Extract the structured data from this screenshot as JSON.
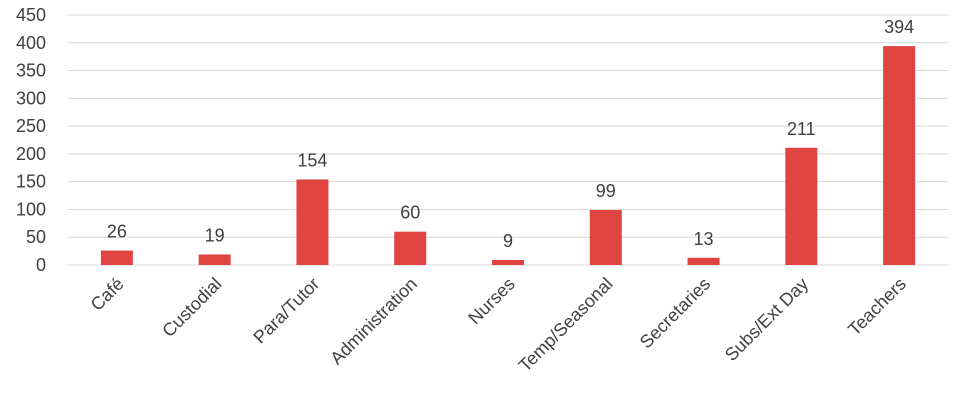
{
  "chart_data": {
    "type": "bar",
    "categories": [
      "Café",
      "Custodial",
      "Para/Tutor",
      "Administration",
      "Nurses",
      "Temp/Seasonal",
      "Secretaries",
      "Subs/Ext Day",
      "Teachers"
    ],
    "values": [
      26,
      19,
      154,
      60,
      9,
      99,
      13,
      211,
      394
    ],
    "data_labels": [
      "26",
      "19",
      "154",
      "60",
      "9",
      "99",
      "13",
      "211",
      "394"
    ],
    "yticks": [
      "0",
      "50",
      "100",
      "150",
      "200",
      "250",
      "300",
      "350",
      "400",
      "450"
    ],
    "ylim": [
      0,
      450
    ],
    "grid": true,
    "bar_color": "#e04440"
  }
}
